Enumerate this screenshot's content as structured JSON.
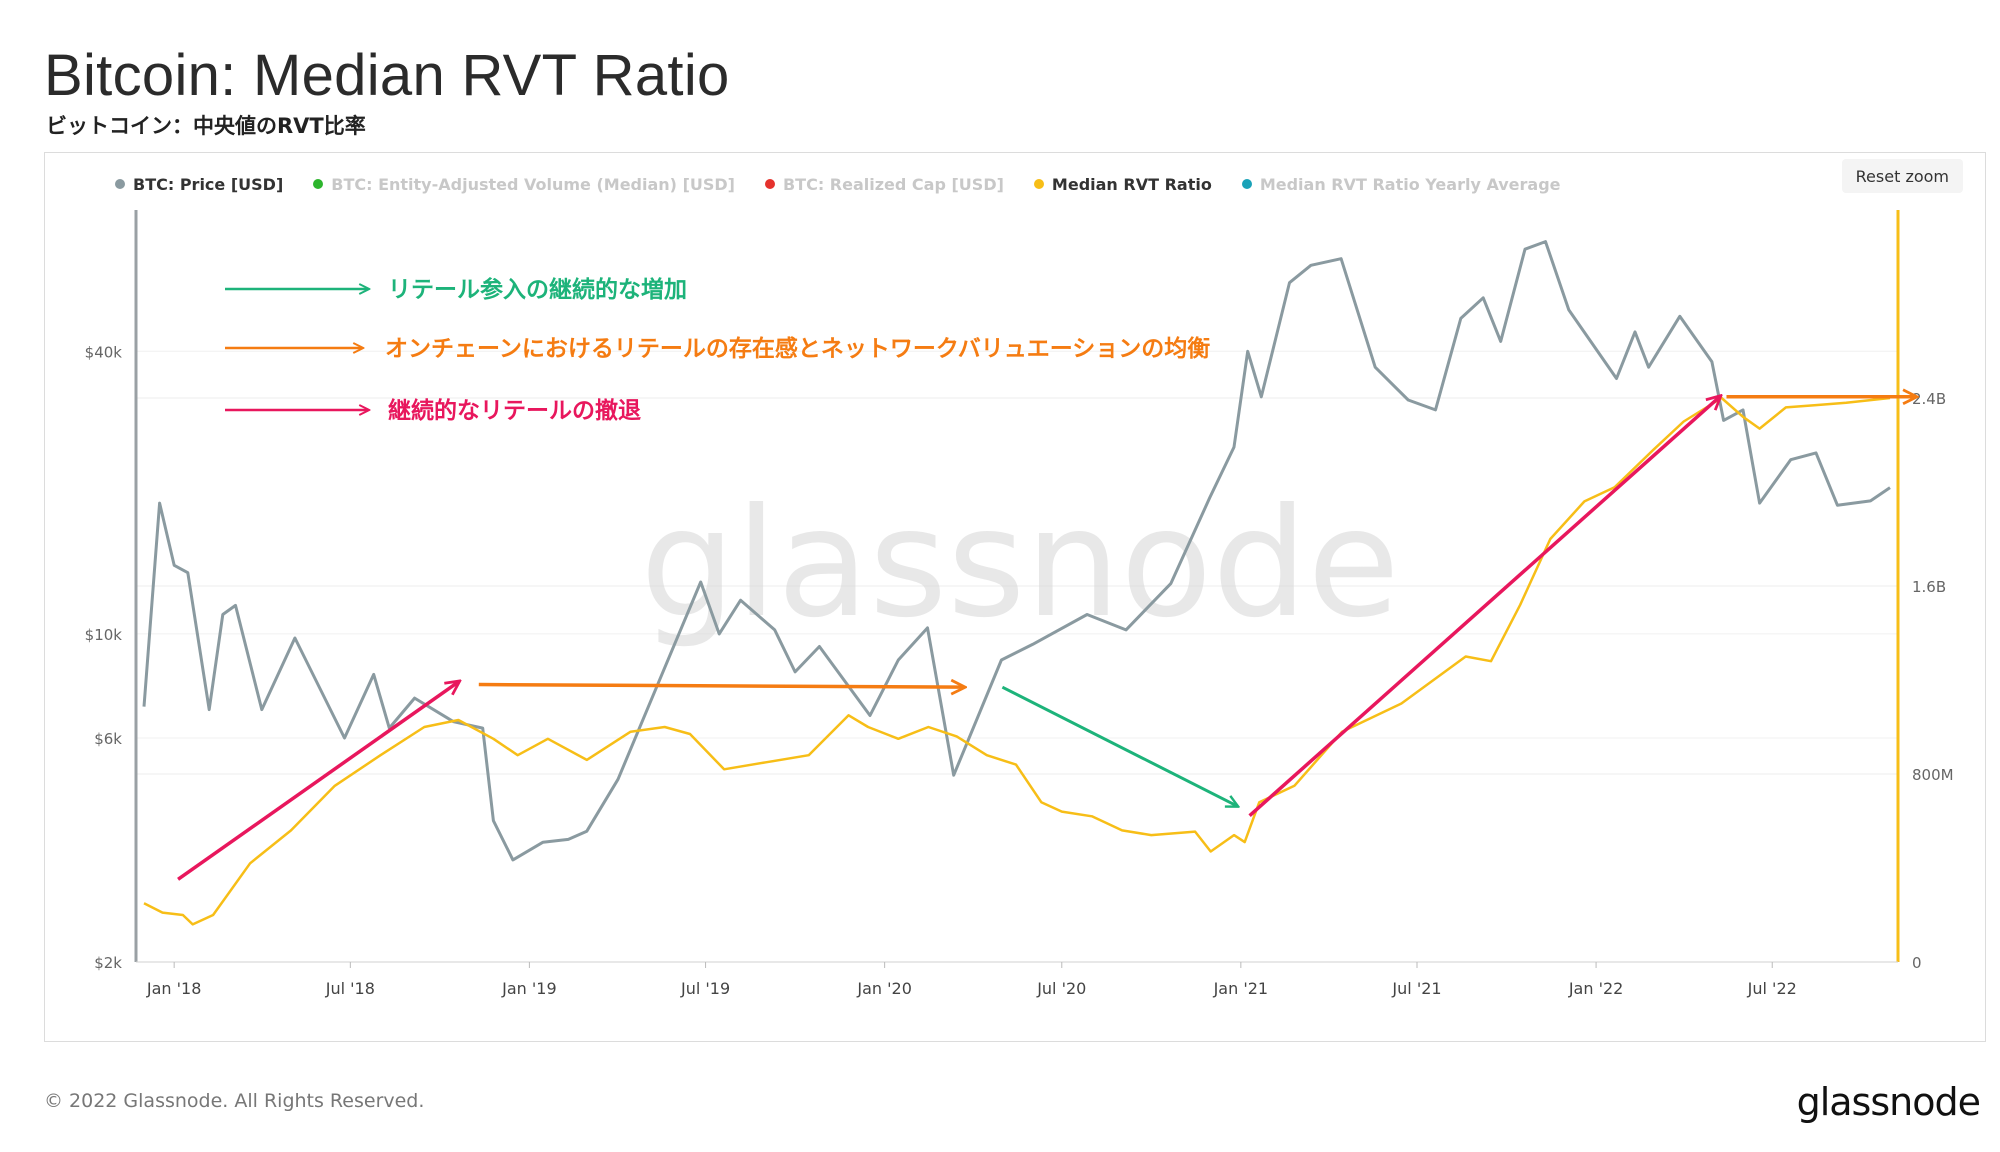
{
  "header": {
    "title": "Bitcoin: Median RVT Ratio",
    "subtitle": "ビットコイン：中央値のRVT比率"
  },
  "legend": [
    {
      "label": "BTC: Price [USD]",
      "color": "#8a9aa0",
      "active": true
    },
    {
      "label": "BTC: Entity-Adjusted Volume (Median) [USD]",
      "color": "#2db52d",
      "active": false
    },
    {
      "label": "BTC: Realized Cap [USD]",
      "color": "#e5322d",
      "active": false
    },
    {
      "label": "Median RVT Ratio",
      "color": "#f7be17",
      "active": true
    },
    {
      "label": "Median RVT Ratio Yearly Average",
      "color": "#1aa2b8",
      "active": false
    }
  ],
  "controls": {
    "reset_zoom": "Reset zoom"
  },
  "watermark": "glassnode",
  "annotations": {
    "colors": {
      "green": "#1db37a",
      "orange": "#f57c12",
      "pink": "#e8175d"
    },
    "green_label": "リテール参入の継続的な増加",
    "orange_label": "オンチェーンにおけるリテールの存在感とネットワークバリュエーションの均衡",
    "pink_label": "継続的なリテールの撤退"
  },
  "footer": {
    "copyright": "© 2022 Glassnode. All Rights Reserved.",
    "logo": "glassnode"
  },
  "chart_data": {
    "type": "line",
    "x_ticks": [
      "Jan '18",
      "Jul '18",
      "Jan '19",
      "Jul '19",
      "Jan '20",
      "Jul '20",
      "Jan '21",
      "Jul '21",
      "Jan '22",
      "Jul '22"
    ],
    "y_left": {
      "scale": "log",
      "ticks": [
        "$2k",
        "$6k",
        "$10k",
        "$40k"
      ],
      "range": [
        2000,
        80000
      ]
    },
    "y_right": {
      "ticks": [
        "0",
        "800M",
        "1.6B",
        "2.4B"
      ],
      "range": [
        0,
        3200000000
      ]
    },
    "series": [
      {
        "name": "BTC: Price [USD]",
        "axis": "left",
        "color": "#8a9aa0",
        "points": [
          [
            "2017-12-01",
            7000
          ],
          [
            "2017-12-17",
            19000
          ],
          [
            "2018-01-01",
            14000
          ],
          [
            "2018-01-15",
            13500
          ],
          [
            "2018-02-06",
            6900
          ],
          [
            "2018-02-20",
            11000
          ],
          [
            "2018-03-05",
            11500
          ],
          [
            "2018-04-01",
            6900
          ],
          [
            "2018-05-05",
            9800
          ],
          [
            "2018-06-25",
            6000
          ],
          [
            "2018-07-25",
            8200
          ],
          [
            "2018-08-10",
            6300
          ],
          [
            "2018-09-05",
            7300
          ],
          [
            "2018-10-15",
            6500
          ],
          [
            "2018-11-14",
            6300
          ],
          [
            "2018-11-25",
            4000
          ],
          [
            "2018-12-15",
            3300
          ],
          [
            "2019-01-15",
            3600
          ],
          [
            "2019-02-10",
            3650
          ],
          [
            "2019-03-01",
            3800
          ],
          [
            "2019-04-02",
            4900
          ],
          [
            "2019-05-15",
            8000
          ],
          [
            "2019-06-26",
            12900
          ],
          [
            "2019-07-15",
            10000
          ],
          [
            "2019-08-06",
            11800
          ],
          [
            "2019-09-10",
            10200
          ],
          [
            "2019-10-01",
            8300
          ],
          [
            "2019-10-26",
            9400
          ],
          [
            "2019-12-17",
            6700
          ],
          [
            "2020-01-15",
            8800
          ],
          [
            "2020-02-14",
            10300
          ],
          [
            "2020-03-12",
            5000
          ],
          [
            "2020-04-30",
            8800
          ],
          [
            "2020-06-01",
            9500
          ],
          [
            "2020-07-27",
            11000
          ],
          [
            "2020-09-05",
            10200
          ],
          [
            "2020-10-21",
            12800
          ],
          [
            "2020-11-30",
            19500
          ],
          [
            "2020-12-25",
            25000
          ],
          [
            "2021-01-08",
            40000
          ],
          [
            "2021-01-22",
            32000
          ],
          [
            "2021-02-20",
            56000
          ],
          [
            "2021-03-14",
            61000
          ],
          [
            "2021-04-14",
            63000
          ],
          [
            "2021-05-19",
            37000
          ],
          [
            "2021-06-22",
            31500
          ],
          [
            "2021-07-20",
            30000
          ],
          [
            "2021-08-15",
            47000
          ],
          [
            "2021-09-07",
            52000
          ],
          [
            "2021-09-25",
            42000
          ],
          [
            "2021-10-20",
            66000
          ],
          [
            "2021-11-10",
            68500
          ],
          [
            "2021-12-04",
            49000
          ],
          [
            "2022-01-22",
            35000
          ],
          [
            "2022-02-10",
            44000
          ],
          [
            "2022-02-24",
            37000
          ],
          [
            "2022-03-28",
            47500
          ],
          [
            "2022-04-30",
            38000
          ],
          [
            "2022-05-12",
            28500
          ],
          [
            "2022-06-01",
            30000
          ],
          [
            "2022-06-18",
            19000
          ],
          [
            "2022-07-20",
            23500
          ],
          [
            "2022-08-15",
            24300
          ],
          [
            "2022-09-06",
            18800
          ],
          [
            "2022-10-10",
            19200
          ],
          [
            "2022-10-30",
            20500
          ]
        ]
      },
      {
        "name": "Median RVT Ratio",
        "axis": "right",
        "color": "#f7be17",
        "points": [
          [
            "2017-12-01",
            250000000
          ],
          [
            "2017-12-20",
            210000000
          ],
          [
            "2018-01-10",
            200000000
          ],
          [
            "2018-01-20",
            160000000
          ],
          [
            "2018-02-10",
            200000000
          ],
          [
            "2018-03-20",
            420000000
          ],
          [
            "2018-05-01",
            560000000
          ],
          [
            "2018-06-15",
            750000000
          ],
          [
            "2018-08-01",
            880000000
          ],
          [
            "2018-09-15",
            1000000000
          ],
          [
            "2018-10-20",
            1030000000
          ],
          [
            "2018-11-25",
            950000000
          ],
          [
            "2018-12-20",
            880000000
          ],
          [
            "2019-01-20",
            950000000
          ],
          [
            "2019-03-01",
            860000000
          ],
          [
            "2019-04-15",
            980000000
          ],
          [
            "2019-05-20",
            1000000000
          ],
          [
            "2019-06-15",
            970000000
          ],
          [
            "2019-07-20",
            820000000
          ],
          [
            "2019-09-01",
            850000000
          ],
          [
            "2019-10-15",
            880000000
          ],
          [
            "2019-11-25",
            1050000000
          ],
          [
            "2019-12-15",
            1000000000
          ],
          [
            "2020-01-15",
            950000000
          ],
          [
            "2020-02-15",
            1000000000
          ],
          [
            "2020-03-15",
            960000000
          ],
          [
            "2020-04-15",
            880000000
          ],
          [
            "2020-05-15",
            840000000
          ],
          [
            "2020-06-10",
            680000000
          ],
          [
            "2020-07-01",
            640000000
          ],
          [
            "2020-08-01",
            620000000
          ],
          [
            "2020-09-01",
            560000000
          ],
          [
            "2020-10-01",
            540000000
          ],
          [
            "2020-11-15",
            555000000
          ],
          [
            "2020-12-01",
            470000000
          ],
          [
            "2020-12-25",
            540000000
          ],
          [
            "2021-01-05",
            510000000
          ],
          [
            "2021-01-20",
            680000000
          ],
          [
            "2021-02-25",
            750000000
          ],
          [
            "2021-04-15",
            980000000
          ],
          [
            "2021-06-15",
            1100000000
          ],
          [
            "2021-08-20",
            1300000000
          ],
          [
            "2021-09-15",
            1280000000
          ],
          [
            "2021-10-15",
            1520000000
          ],
          [
            "2021-11-15",
            1800000000
          ],
          [
            "2021-12-20",
            1960000000
          ],
          [
            "2022-01-20",
            2020000000
          ],
          [
            "2022-03-01",
            2180000000
          ],
          [
            "2022-04-01",
            2300000000
          ],
          [
            "2022-05-10",
            2400000000
          ],
          [
            "2022-06-01",
            2320000000
          ],
          [
            "2022-06-18",
            2270000000
          ],
          [
            "2022-07-15",
            2360000000
          ],
          [
            "2022-08-15",
            2370000000
          ],
          [
            "2022-09-15",
            2380000000
          ],
          [
            "2022-10-30",
            2400000000
          ]
        ]
      }
    ],
    "arrows": [
      {
        "color": "pink",
        "from": [
          "2018-01-05",
          3000
        ],
        "to": [
          "2018-10-20",
          7900
        ]
      },
      {
        "color": "orange",
        "from": [
          "2018-11-10",
          7800
        ],
        "to": [
          "2020-03-22",
          7700
        ]
      },
      {
        "color": "green",
        "from": [
          "2020-05-01",
          7700
        ],
        "to": [
          "2020-12-28",
          4300
        ]
      },
      {
        "color": "pink",
        "from": [
          "2021-01-10",
          4100
        ],
        "to": [
          "2022-05-08",
          32000
        ]
      },
      {
        "color": "orange",
        "from": [
          "2022-05-15",
          32000
        ],
        "to": [
          "2022-11-25",
          32000
        ]
      }
    ]
  }
}
